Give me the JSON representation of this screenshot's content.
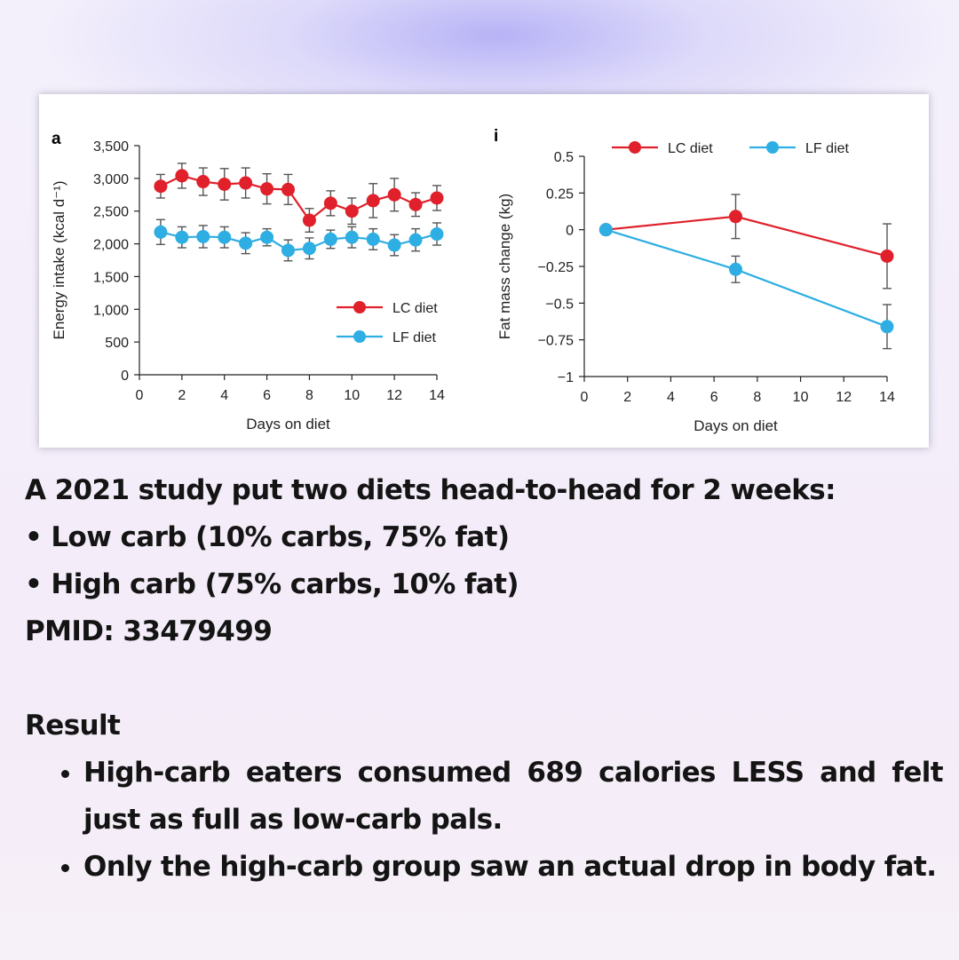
{
  "text": {
    "line1": "A 2021 study put two diets head-to-head for 2 weeks:",
    "line2": "• Low carb (10% carbs, 75% fat)",
    "line3": "• High carb (75% carbs, 10% fat)",
    "line4": "PMID: 33479499",
    "result_heading": "Result",
    "bullets": [
      "High-carb eaters consumed 689 calories LESS and felt just as full as low-carb pals.",
      "Only the high-carb group saw an actual drop in body fat."
    ]
  },
  "colors": {
    "lc": "#e0202a",
    "lf": "#2eaee3",
    "axis": "#222222",
    "error": "#555555"
  },
  "chart_data": [
    {
      "type": "line",
      "panel_label": "a",
      "xlabel": "Days on diet",
      "ylabel": "Energy intake (kcal d⁻¹)",
      "xlim": [
        0,
        14
      ],
      "ylim": [
        0,
        3500
      ],
      "xticks": [
        0,
        2,
        4,
        6,
        8,
        10,
        12,
        14
      ],
      "yticks": [
        0,
        500,
        1000,
        1500,
        2000,
        2500,
        3000,
        3500
      ],
      "ytick_labels": [
        "0",
        "500",
        "1,000",
        "1,500",
        "2,000",
        "2,500",
        "3,000",
        "3,500"
      ],
      "legend_position": "bottom-right",
      "grid": false,
      "series": [
        {
          "name": "LC diet",
          "color": "#e0202a",
          "x": [
            1,
            2,
            3,
            4,
            5,
            6,
            7,
            8,
            9,
            10,
            11,
            12,
            13,
            14
          ],
          "y": [
            2880,
            3040,
            2950,
            2910,
            2930,
            2840,
            2830,
            2360,
            2620,
            2500,
            2660,
            2750,
            2600,
            2700
          ],
          "err": [
            180,
            190,
            210,
            240,
            230,
            230,
            230,
            180,
            190,
            200,
            260,
            250,
            180,
            190
          ]
        },
        {
          "name": "LF diet",
          "color": "#2eaee3",
          "x": [
            1,
            2,
            3,
            4,
            5,
            6,
            7,
            8,
            9,
            10,
            11,
            12,
            13,
            14
          ],
          "y": [
            2180,
            2100,
            2110,
            2100,
            2010,
            2100,
            1900,
            1930,
            2070,
            2100,
            2070,
            1980,
            2060,
            2150
          ],
          "err": [
            190,
            160,
            170,
            160,
            160,
            130,
            160,
            160,
            140,
            160,
            160,
            160,
            170,
            170
          ]
        }
      ]
    },
    {
      "type": "line",
      "panel_label": "i",
      "xlabel": "Days on diet",
      "ylabel": "Fat mass change (kg)",
      "xlim": [
        0,
        14
      ],
      "ylim": [
        -1,
        0.5
      ],
      "xticks": [
        0,
        2,
        4,
        6,
        8,
        10,
        12,
        14
      ],
      "yticks": [
        -1,
        -0.75,
        -0.5,
        -0.25,
        0,
        0.25,
        0.5
      ],
      "ytick_labels": [
        "−1",
        "−0.75",
        "−0.5",
        "−0.25",
        "0",
        "0.25",
        "0.5"
      ],
      "legend_position": "top",
      "grid": false,
      "series": [
        {
          "name": "LC diet",
          "color": "#e0202a",
          "x": [
            1,
            7,
            14
          ],
          "y": [
            0,
            0.09,
            -0.18
          ],
          "err": [
            0,
            0.15,
            0.22
          ]
        },
        {
          "name": "LF diet",
          "color": "#2eaee3",
          "x": [
            1,
            7,
            14
          ],
          "y": [
            0,
            -0.27,
            -0.66
          ],
          "err": [
            0,
            0.09,
            0.15
          ]
        }
      ]
    }
  ]
}
